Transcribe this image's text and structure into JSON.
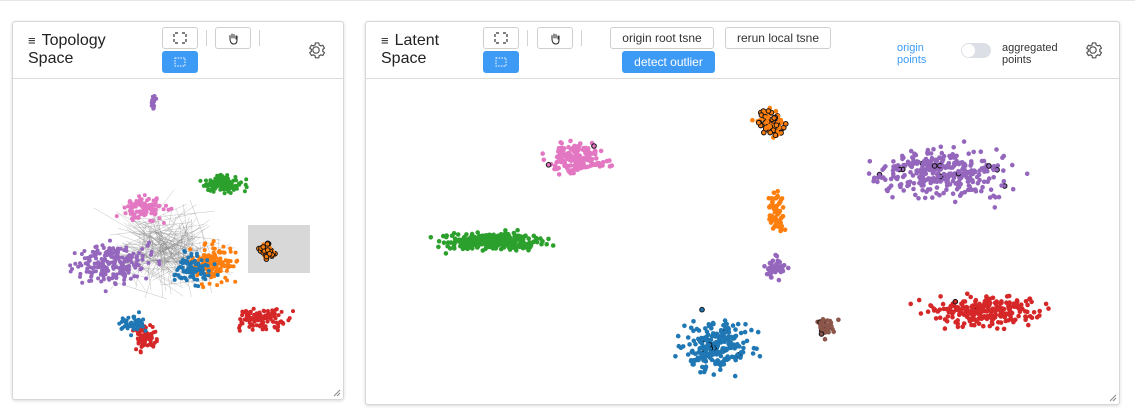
{
  "topology": {
    "title_line1": "Topology",
    "title_line2": "Space",
    "icons": {
      "select": "box-select-icon",
      "pan": "hand-pan-icon",
      "lasso": "lasso-select-icon",
      "settings": "gear-icon"
    }
  },
  "latent": {
    "title_line1": "Latent",
    "title_line2": "Space",
    "buttons": {
      "origin_root": "origin root tsne",
      "rerun_local": "rerun local tsne",
      "detect_outlier": "detect outlier"
    },
    "origin_points_line1": "origin",
    "origin_points_line2": "points",
    "aggregated_line1": "aggregated",
    "aggregated_line2": "points",
    "toggle_on": false
  },
  "colors": {
    "accent": "#3d9bf5",
    "purple": "#9467bd",
    "pink": "#e377c2",
    "green": "#2ca02c",
    "orange": "#ff7f0e",
    "blue": "#1f77b4",
    "red": "#d62728",
    "brown": "#8c564b",
    "outline": "#111111"
  }
}
